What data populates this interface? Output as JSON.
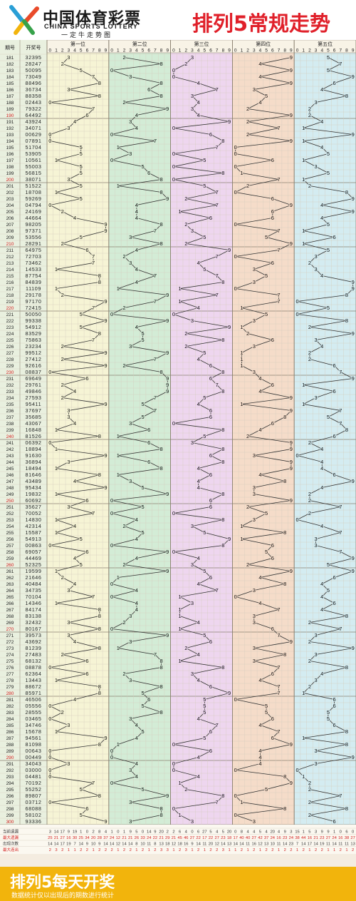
{
  "logo": {
    "name_cn": "中国体育彩票",
    "name_en": "CHINA SPORTS LOTTERY",
    "tagline": "一定牛走势图"
  },
  "title": "排列5常规走势",
  "footer": {
    "title": "排列5每天开奖",
    "note": "数据统计仅以出现后的期数进行统计"
  },
  "colors": {
    "position_bands": [
      "#f6f4d5",
      "#d3ecd6",
      "#eed6ef",
      "#f5dcc9",
      "#d4ecf1"
    ],
    "line": "#333333",
    "period_red": "#d42020"
  },
  "table": {
    "col_period": "期号",
    "col_draw": "开奖号",
    "positions": [
      "第一位",
      "第二位",
      "第三位",
      "第四位",
      "第五位"
    ],
    "digits": [
      "0",
      "1",
      "2",
      "3",
      "4",
      "5",
      "6",
      "7",
      "8",
      "9"
    ]
  },
  "stats_labels": [
    "当前遗漏",
    "最大遗漏",
    "出现次数",
    "最大连出"
  ],
  "chart_data": {
    "type": "line",
    "title": "排列5常规走势",
    "x": [
      181,
      182,
      183,
      184,
      185,
      186,
      187,
      188,
      189,
      190,
      191,
      192,
      193,
      194,
      195,
      196,
      197,
      198,
      199,
      200,
      201,
      202,
      203,
      204,
      205,
      206,
      207,
      208,
      209,
      210,
      211,
      212,
      213,
      214,
      215,
      216,
      217,
      218,
      219,
      220,
      221,
      222,
      223,
      224,
      225,
      226,
      227,
      228,
      229,
      230,
      231,
      232,
      233,
      234,
      235,
      236,
      237,
      238,
      239,
      240,
      241,
      242,
      243,
      244,
      245,
      246,
      247,
      248,
      249,
      250,
      251,
      252,
      253,
      254,
      255,
      256,
      257,
      258,
      259,
      260,
      261,
      262,
      263,
      264,
      265,
      266,
      267,
      268,
      269,
      270,
      271,
      272,
      273,
      274,
      275,
      276,
      277,
      278,
      279,
      280,
      281,
      282,
      283,
      284,
      285,
      286,
      287,
      288,
      289,
      290,
      291,
      292,
      293,
      294,
      295,
      296,
      297,
      298,
      299,
      300
    ],
    "draws": [
      "32395",
      "28247",
      "50095",
      "73049",
      "88496",
      "36734",
      "88358",
      "02443",
      "79322",
      "64492",
      "43924",
      "34071",
      "00629",
      "07891",
      "51704",
      "53905",
      "10561",
      "55003",
      "56815",
      "38071",
      "51522",
      "18708",
      "59269",
      "04794",
      "24169",
      "44664",
      "98205",
      "97371",
      "53556",
      "28291",
      "64975",
      "72703",
      "73462",
      "14533",
      "87754",
      "84839",
      "11109",
      "29178",
      "97170",
      "72415",
      "50050",
      "99338",
      "54912",
      "83529",
      "75863",
      "23234",
      "99512",
      "27412",
      "92616",
      "08837",
      "69649",
      "29761",
      "49846",
      "27593",
      "95411",
      "37697",
      "35685",
      "43067",
      "16848",
      "81526",
      "06392",
      "18894",
      "91630",
      "36894",
      "18494",
      "81646",
      "43489",
      "95434",
      "19832",
      "60692",
      "35627",
      "70052",
      "14830",
      "42314",
      "15587",
      "54913",
      "00863",
      "69057",
      "44469",
      "52325",
      "19599",
      "21646",
      "40484",
      "34735",
      "70104",
      "14346",
      "84174",
      "83138",
      "32432",
      "80167",
      "39573",
      "43692",
      "81239",
      "27483",
      "68132",
      "08878",
      "62364",
      "13443",
      "88672",
      "85971",
      "46506",
      "05556",
      "28555",
      "03465",
      "34746",
      "15678",
      "94561",
      "81098",
      "00643",
      "00449",
      "34043",
      "03000",
      "04481",
      "70192",
      "55252",
      "89807",
      "03712",
      "68088",
      "58102",
      "93336"
    ],
    "series": [
      {
        "values": [
          3,
          2,
          5,
          7,
          8,
          3,
          8,
          0,
          7,
          6,
          4,
          3,
          0,
          0,
          5,
          5,
          1,
          5,
          5,
          3,
          5,
          1,
          5,
          0,
          2,
          4,
          9,
          9,
          5,
          2,
          6,
          7,
          7,
          1,
          8,
          8,
          1,
          2,
          9,
          7,
          5,
          9,
          5,
          8,
          7,
          2,
          9,
          2,
          9,
          0,
          6,
          2,
          4,
          2,
          9,
          3,
          3,
          4,
          1,
          8,
          0,
          1,
          9,
          3,
          1,
          8,
          4,
          9,
          1,
          6,
          3,
          7,
          1,
          4,
          1,
          5,
          0,
          6,
          4,
          5,
          1,
          2,
          4,
          3,
          7,
          1,
          8,
          8,
          3,
          8,
          3,
          4,
          8,
          2,
          6,
          0,
          6,
          1,
          8,
          8,
          4,
          0,
          2,
          0,
          3,
          1,
          9,
          8,
          0,
          0,
          3,
          0,
          0,
          7,
          5,
          8,
          0,
          6,
          5,
          9
        ]
      },
      {
        "values": [
          2,
          8,
          0,
          3,
          8,
          6,
          8,
          2,
          9,
          4,
          3,
          4,
          0,
          7,
          1,
          3,
          0,
          5,
          6,
          8,
          1,
          8,
          9,
          4,
          4,
          4,
          8,
          7,
          3,
          8,
          4,
          2,
          3,
          4,
          7,
          4,
          1,
          9,
          7,
          2,
          0,
          9,
          4,
          5,
          5,
          3,
          9,
          7,
          2,
          8,
          9,
          9,
          9,
          7,
          5,
          7,
          5,
          3,
          6,
          1,
          6,
          8,
          1,
          6,
          8,
          1,
          3,
          5,
          9,
          0,
          5,
          0,
          4,
          2,
          5,
          4,
          0,
          9,
          4,
          2,
          9,
          1,
          0,
          4,
          0,
          4,
          4,
          3,
          2,
          0,
          9,
          3,
          1,
          7,
          8,
          8,
          2,
          3,
          8,
          5,
          6,
          5,
          8,
          3,
          4,
          5,
          4,
          1,
          0,
          0,
          4,
          3,
          4,
          0,
          5,
          9,
          3,
          8,
          8,
          3
        ]
      },
      {
        "values": [
          3,
          2,
          0,
          0,
          4,
          7,
          3,
          4,
          3,
          4,
          9,
          0,
          6,
          8,
          7,
          0,
          5,
          0,
          8,
          0,
          5,
          7,
          2,
          7,
          1,
          6,
          2,
          3,
          5,
          2,
          9,
          7,
          4,
          5,
          7,
          8,
          1,
          7,
          1,
          4,
          0,
          3,
          9,
          2,
          8,
          2,
          5,
          4,
          6,
          8,
          6,
          7,
          8,
          5,
          4,
          6,
          6,
          0,
          8,
          5,
          3,
          8,
          6,
          8,
          4,
          6,
          4,
          4,
          8,
          6,
          6,
          0,
          8,
          3,
          5,
          9,
          8,
          0,
          4,
          3,
          5,
          6,
          4,
          7,
          1,
          3,
          1,
          1,
          4,
          1,
          5,
          6,
          2,
          4,
          1,
          8,
          3,
          4,
          6,
          9,
          5,
          5,
          5,
          4,
          7,
          6,
          5,
          0,
          6,
          4,
          0,
          0,
          4,
          1,
          2,
          8,
          7,
          0,
          1,
          3
        ]
      },
      {
        "values": [
          9,
          4,
          9,
          4,
          9,
          3,
          5,
          4,
          2,
          9,
          2,
          7,
          2,
          9,
          0,
          0,
          6,
          0,
          1,
          7,
          2,
          0,
          6,
          9,
          6,
          6,
          0,
          7,
          5,
          9,
          7,
          0,
          6,
          3,
          5,
          3,
          0,
          7,
          7,
          1,
          5,
          3,
          1,
          2,
          6,
          3,
          1,
          1,
          1,
          3,
          4,
          6,
          4,
          9,
          1,
          9,
          8,
          6,
          4,
          2,
          9,
          9,
          3,
          9,
          9,
          4,
          8,
          3,
          3,
          9,
          2,
          5,
          3,
          1,
          8,
          1,
          6,
          5,
          6,
          2,
          9,
          4,
          8,
          3,
          0,
          4,
          7,
          3,
          3,
          6,
          7,
          9,
          3,
          8,
          3,
          7,
          6,
          4,
          7,
          7,
          0,
          5,
          5,
          6,
          4,
          7,
          6,
          9,
          4,
          4,
          4,
          0,
          8,
          9,
          5,
          0,
          1,
          8,
          0,
          3
        ]
      },
      {
        "values": [
          5,
          7,
          5,
          9,
          6,
          4,
          8,
          3,
          2,
          2,
          4,
          1,
          9,
          1,
          4,
          5,
          1,
          3,
          5,
          1,
          2,
          8,
          9,
          4,
          9,
          4,
          5,
          1,
          6,
          1,
          5,
          3,
          2,
          3,
          4,
          9,
          9,
          8,
          0,
          5,
          0,
          8,
          2,
          9,
          3,
          4,
          2,
          2,
          6,
          7,
          9,
          1,
          6,
          3,
          1,
          7,
          5,
          7,
          8,
          6,
          2,
          4,
          0,
          4,
          4,
          6,
          9,
          4,
          2,
          2,
          7,
          2,
          0,
          4,
          7,
          3,
          3,
          7,
          9,
          5,
          9,
          6,
          4,
          5,
          4,
          6,
          4,
          8,
          2,
          7,
          3,
          2,
          9,
          3,
          2,
          8,
          4,
          3,
          2,
          1,
          6,
          6,
          5,
          5,
          6,
          8,
          1,
          8,
          3,
          9,
          3,
          0,
          1,
          2,
          2,
          7,
          2,
          8,
          2,
          6
        ]
      }
    ],
    "stats": {
      "当前遗漏": [
        [
          3,
          14,
          17,
          9,
          19,
          1,
          0,
          2,
          8,
          4
        ],
        [
          1,
          0,
          1,
          9,
          5,
          0,
          14,
          9,
          20,
          2
        ],
        [
          2,
          6,
          4,
          0,
          6,
          27,
          5,
          4,
          5,
          20
        ],
        [
          0,
          8,
          4,
          4,
          5,
          4,
          20,
          4,
          9,
          3
        ],
        [
          15,
          1,
          5,
          3,
          9,
          9,
          1,
          0,
          6,
          0
        ]
      ],
      "最大遗漏": [
        [
          25,
          21,
          27,
          16,
          30,
          25,
          34,
          20,
          28,
          37
        ],
        [
          24,
          12,
          21,
          21,
          26,
          33,
          24,
          22,
          21,
          29
        ],
        [
          21,
          45,
          46,
          27,
          22,
          17,
          22,
          27,
          23,
          18
        ],
        [
          17,
          40,
          40,
          27,
          42,
          37,
          24,
          16,
          23,
          24
        ],
        [
          38,
          44,
          16,
          21,
          23,
          27,
          24,
          16,
          38,
          27
        ]
      ],
      "出现次数": [
        [
          14,
          14,
          17,
          19,
          7,
          14,
          9,
          10,
          9,
          14
        ],
        [
          14,
          12,
          14,
          14,
          8,
          10,
          11,
          8,
          13,
          18
        ],
        [
          12,
          18,
          16,
          9,
          14,
          11,
          20,
          12,
          14,
          13
        ],
        [
          14,
          14,
          11,
          16,
          12,
          13,
          10,
          11,
          14,
          23
        ],
        [
          7,
          14,
          17,
          14,
          19,
          11,
          14,
          11,
          11,
          13
        ]
      ],
      "最大连出": [
        [
          2,
          3,
          2,
          1,
          1,
          2,
          2,
          1,
          2,
          2
        ],
        [
          2,
          1,
          2,
          2,
          1,
          2,
          1,
          2,
          3,
          3
        ],
        [
          1,
          2,
          3,
          1,
          2,
          1,
          2,
          2,
          3,
          1
        ],
        [
          1,
          2,
          1,
          2,
          1,
          2,
          2,
          1,
          2,
          2
        ],
        [
          1,
          2,
          1,
          2,
          2,
          1,
          1,
          2,
          1,
          2
        ]
      ]
    }
  }
}
